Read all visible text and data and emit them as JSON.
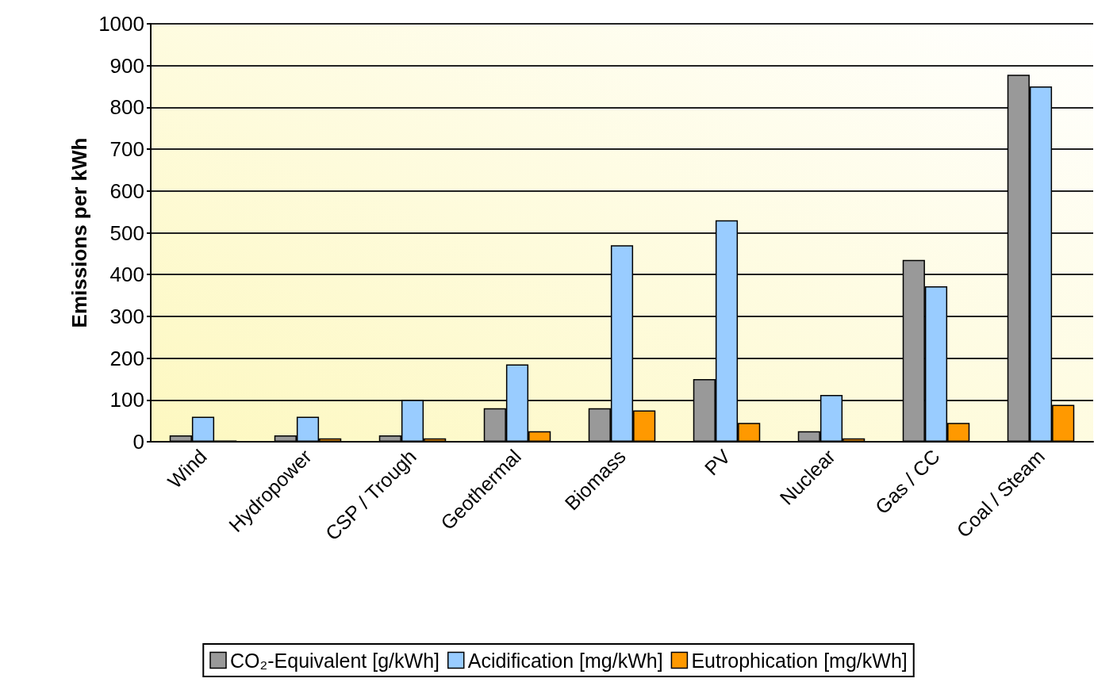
{
  "chart_data": {
    "type": "bar",
    "ylabel": "Emissions per kWh",
    "categories": [
      "Wind",
      "Hydropower",
      "CSP / Trough",
      "Geothermal",
      "Biomass",
      "PV",
      "Nuclear",
      "Gas / CC",
      "Coal / Steam"
    ],
    "series": [
      {
        "name": "CO₂-Equivalent [g/kWh]",
        "color": "#999999",
        "values": [
          15,
          15,
          15,
          80,
          80,
          150,
          25,
          435,
          878
        ]
      },
      {
        "name": "Acidification [mg/kWh]",
        "color": "#99ccff",
        "values": [
          60,
          60,
          100,
          185,
          470,
          530,
          112,
          372,
          850
        ]
      },
      {
        "name": "Eutrophication [mg/kWh]",
        "color": "#ff9900",
        "values": [
          3,
          8,
          8,
          25,
          75,
          45,
          8,
          45,
          88
        ]
      }
    ],
    "ylim": [
      0,
      1000
    ],
    "yticks": [
      0,
      100,
      200,
      300,
      400,
      500,
      600,
      700,
      800,
      900,
      1000
    ],
    "grid": "y",
    "legend": "bottom"
  }
}
